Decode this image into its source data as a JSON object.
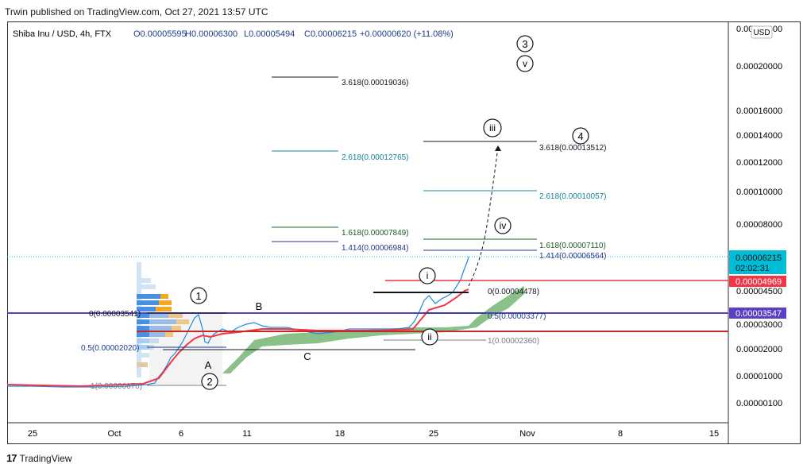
{
  "header": {
    "published": "Trwin published on TradingView.com, Oct 27, 2021 13:57 UTC"
  },
  "legend": {
    "symbol": "Shiba Inu / USD, 4h, FTX",
    "o": "O0.00005595",
    "h": "H0.00006300",
    "l": "L0.00005494",
    "c": "C0.00006215",
    "change": "+0.00000620 (+11.08%)"
  },
  "currency_button": "USD",
  "colors": {
    "up": "#26a69a",
    "down": "#ef5350",
    "accent_blue": "#1e3a8a",
    "teal": "#138496",
    "green_fib": "#1b5e20",
    "purple": "#5b3fc4",
    "red": "#f23645",
    "price_tag": "#00bcd4",
    "cloud": "#6cb26c"
  },
  "price_axis": {
    "top_clipped": "0.00024000",
    "ticks": [
      "0.00020000",
      "0.00016000",
      "0.00014000",
      "0.00012000",
      "0.00010000",
      "0.00008000",
      "0.00004500",
      "0.00003000",
      "0.00002000",
      "0.00001000",
      "0.00000100"
    ],
    "last_price": "0.00006215",
    "countdown": "02:02:31",
    "red_level": "0.00004969",
    "purple_level": "0.00003547"
  },
  "time_axis": {
    "ticks": [
      "25",
      "Oct",
      "6",
      "11",
      "18",
      "25",
      "Nov",
      "8",
      "15"
    ]
  },
  "fib_labels": {
    "left_3618": "3.618(0.00019036)",
    "left_2618": "2.618(0.00012765)",
    "left_1618": "1.618(0.00007849)",
    "left_1414": "1.414(0.00006984)",
    "left_0": "0(0.00003541)",
    "left_05": "0.5(0.00002020)",
    "left_1": "1(0.00000670)",
    "right_3618": "3.618(0.00013512)",
    "right_2618": "2.618(0.00010057)",
    "right_1618": "1.618(0.00007110)",
    "right_1414": "1.414(0.00006564)",
    "right_0": "0(0.00004478)",
    "right_05": "0.5(0.00003377)",
    "right_1": "1(0.00002360)"
  },
  "wave_labels": {
    "w1": "1",
    "w2": "2",
    "w3": "3",
    "w4": "4",
    "wv": "v",
    "wi": "i",
    "wii": "ii",
    "wiii": "iii",
    "wiv": "iv",
    "wA": "A",
    "wB": "B",
    "wC": "C"
  },
  "footer": {
    "brand": "TradingView",
    "logo": "17"
  }
}
